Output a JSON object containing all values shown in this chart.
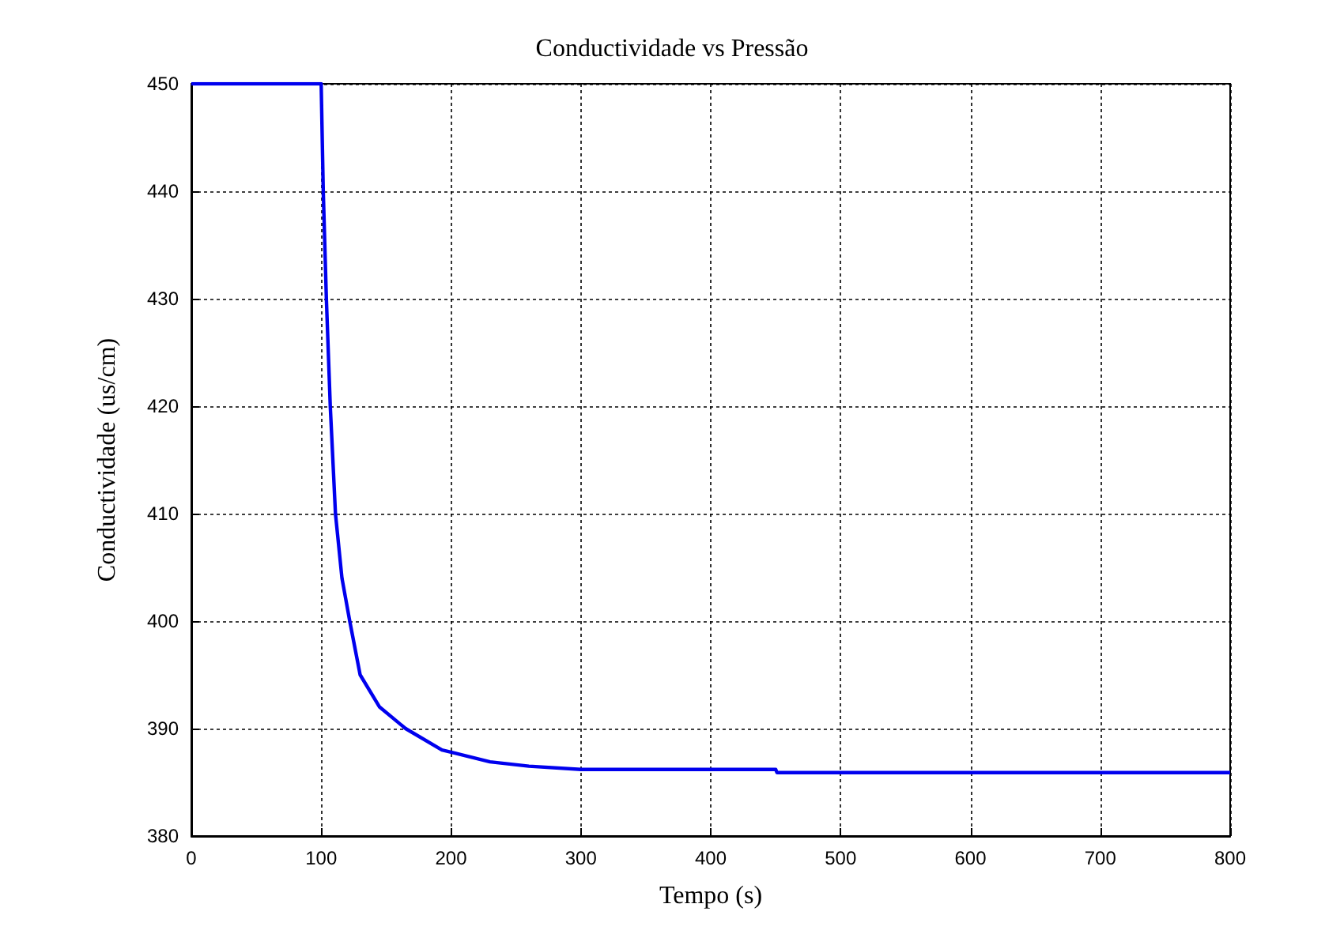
{
  "chart_data": {
    "type": "line",
    "title": "Conductividade vs Pressão",
    "xlabel": "Tempo (s)",
    "ylabel": "Conductividade (us/cm)",
    "x": [
      0,
      100,
      101.6,
      104,
      107,
      111,
      116,
      122,
      130,
      145,
      165,
      193,
      200,
      230,
      260,
      300,
      450,
      451,
      800
    ],
    "series": [
      {
        "color": "#0000ee",
        "values": [
          450,
          450,
          440,
          430,
          420,
          410,
          404,
          400,
          395,
          392,
          390,
          388,
          387.8,
          386.9,
          386.5,
          386.2,
          386.2,
          385.9,
          385.9
        ]
      }
    ],
    "xlim": [
      0,
      800
    ],
    "xticks": [
      0,
      100,
      200,
      300,
      400,
      500,
      600,
      700,
      800
    ],
    "ylim": [
      380,
      450
    ],
    "yticks": [
      380,
      390,
      400,
      410,
      420,
      430,
      440,
      450
    ],
    "grid": true,
    "marker": "none",
    "line_style": "solid"
  }
}
